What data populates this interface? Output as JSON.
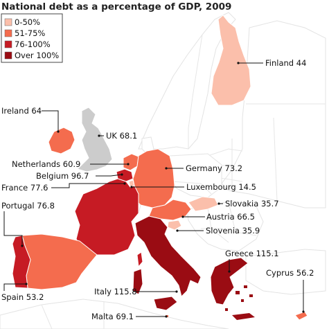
{
  "title": "National debt as a percentage of GDP, 2009",
  "legend": [
    {
      "label": "0-50%",
      "color": "#fbbfab"
    },
    {
      "label": "51-75%",
      "color": "#f46c4e"
    },
    {
      "label": "76-100%",
      "color": "#c61b24"
    },
    {
      "label": "Over 100%",
      "color": "#9a0c13"
    }
  ],
  "no_data_color": "#cccccc",
  "countries": [
    {
      "id": "finland",
      "label": "Finland 44"
    },
    {
      "id": "ireland",
      "label": "Ireland 64"
    },
    {
      "id": "uk",
      "label": "UK 68.1"
    },
    {
      "id": "netherlands",
      "label": "Netherlands 60.9"
    },
    {
      "id": "belgium",
      "label": "Belgium 96.7"
    },
    {
      "id": "germany",
      "label": "Germany 73.2"
    },
    {
      "id": "france",
      "label": "France 77.6"
    },
    {
      "id": "luxembourg",
      "label": "Luxembourg 14.5"
    },
    {
      "id": "portugal",
      "label": "Portugal 76.8"
    },
    {
      "id": "slovakia",
      "label": "Slovakia 35.7"
    },
    {
      "id": "austria",
      "label": "Austria 66.5"
    },
    {
      "id": "slovenia",
      "label": "Slovenia 35.9"
    },
    {
      "id": "greece",
      "label": "Greece 115.1"
    },
    {
      "id": "cyprus",
      "label": "Cyprus 56.2"
    },
    {
      "id": "spain",
      "label": "Spain 53.2"
    },
    {
      "id": "italy",
      "label": "Italy 115.8"
    },
    {
      "id": "malta",
      "label": "Malta 69.1"
    }
  ]
}
